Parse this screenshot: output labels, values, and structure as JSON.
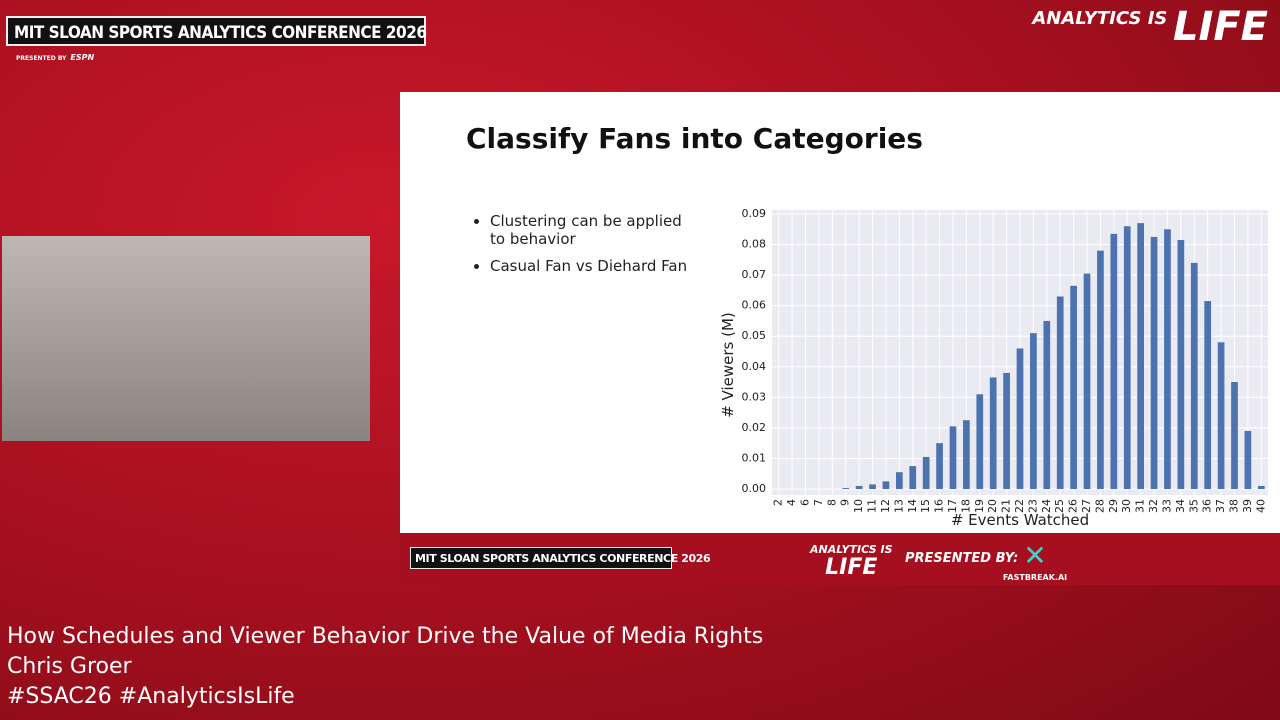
{
  "header": {
    "conference": "MIT SLOAN SPORTS ANALYTICS CONFERENCE 2026",
    "presented_by": "PRESENTED BY",
    "sponsor": "ESPN",
    "tagline_small": "ANALYTICS IS",
    "tagline_big": "LIFE"
  },
  "slide": {
    "title": "Classify Fans into Categories",
    "bullets": [
      "Clustering can be applied to behavior",
      "Casual Fan vs Diehard Fan"
    ]
  },
  "chart_data": {
    "type": "bar",
    "x_label": "# Events Watched",
    "y_label": "# Viewers (M)",
    "categories": [
      "2",
      "4",
      "6",
      "7",
      "8",
      "9",
      "10",
      "11",
      "12",
      "13",
      "14",
      "15",
      "16",
      "17",
      "18",
      "19",
      "20",
      "21",
      "22",
      "23",
      "24",
      "25",
      "26",
      "27",
      "28",
      "29",
      "30",
      "31",
      "32",
      "33",
      "34",
      "35",
      "36",
      "37",
      "38",
      "39",
      "40"
    ],
    "values": [
      0,
      0,
      0,
      0,
      0,
      0.0003,
      0.001,
      0.0015,
      0.0025,
      0.0055,
      0.0075,
      0.0105,
      0.015,
      0.0205,
      0.0225,
      0.031,
      0.0365,
      0.038,
      0.046,
      0.051,
      0.055,
      0.063,
      0.0665,
      0.0705,
      0.078,
      0.0835,
      0.086,
      0.087,
      0.0825,
      0.085,
      0.0815,
      0.074,
      0.0615,
      0.048,
      0.035,
      0.019,
      0.001
    ],
    "color": "#4c72b0",
    "ylim": [
      0,
      0.09
    ],
    "yticks": [
      {
        "value": 0,
        "label": "0.00"
      },
      0.01,
      0.02,
      0.03,
      0.04,
      0.05,
      0.06,
      0.07,
      0.08,
      0.09
    ],
    "grid": true
  },
  "banner": {
    "conference": "MIT SLOAN SPORTS ANALYTICS CONFERENCE 2026",
    "tagline_small": "ANALYTICS IS",
    "tagline_big": "LIFE",
    "presented_by": "PRESENTED BY:",
    "sponsor": "FASTBREAK.AI"
  },
  "captions": [
    "How Schedules and Viewer Behavior Drive the Value of Media Rights",
    "Chris Groer",
    "#SSAC26 #AnalyticsIsLife"
  ]
}
